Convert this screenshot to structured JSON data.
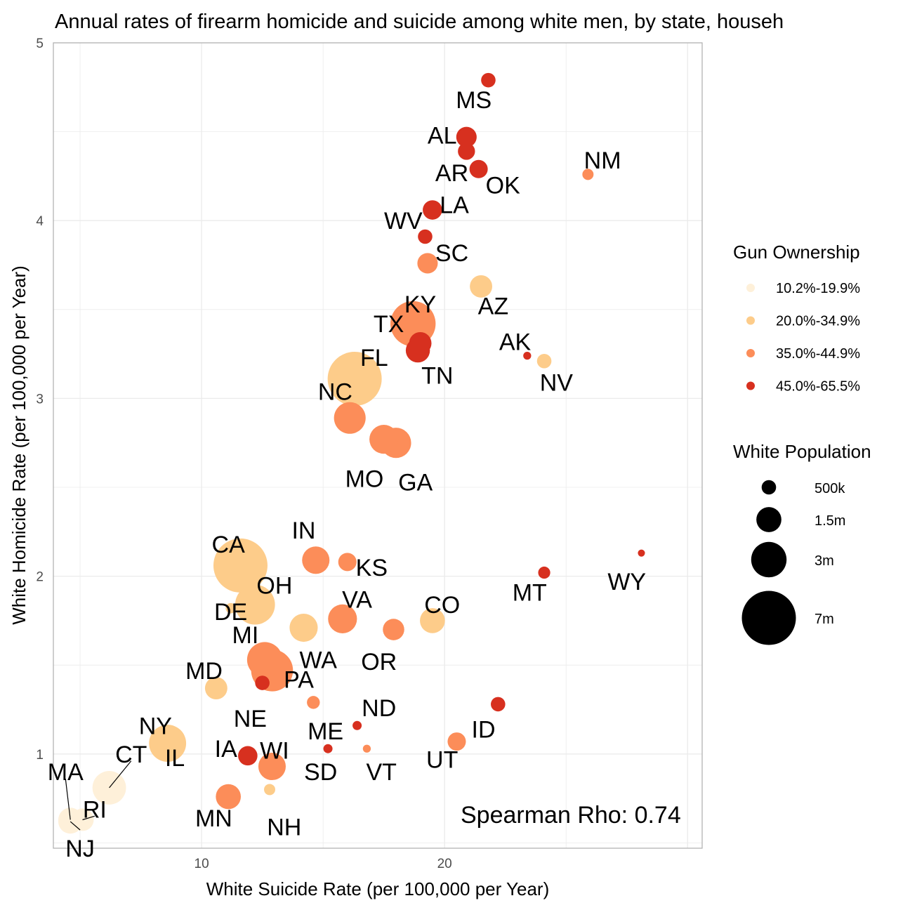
{
  "chart_data": {
    "type": "scatter",
    "title": "Annual rates of firearm homicide and suicide among white men, by state, househ",
    "xlabel": "White Suicide Rate (per 100,000 per Year)",
    "ylabel": "White Homicide Rate (per 100,000 per Year)",
    "xlim": [
      3.9,
      30.6
    ],
    "ylim": [
      0.47,
      5.0
    ],
    "xticks": [
      10,
      20
    ],
    "yticks": [
      1,
      2,
      3,
      4,
      5
    ],
    "grid": true,
    "annotation": "Spearman Rho:  0.74",
    "colors": {
      "10.2%-19.9%": "#fef0d9",
      "20.0%-34.9%": "#fdcc8a",
      "35.0%-44.9%": "#fc8d59",
      "45.0%-65.5%": "#d7301f"
    },
    "legend": {
      "placement": "right",
      "color_title": "Gun Ownership",
      "color_entries": [
        "10.2%-19.9%",
        "20.0%-34.9%",
        "35.0%-44.9%",
        "45.0%-65.5%"
      ],
      "size_title": "White Population",
      "size_entries": [
        {
          "label": "500k",
          "pop": 500000
        },
        {
          "label": "1.5m",
          "pop": 1500000
        },
        {
          "label": "3m",
          "pop": 3000000
        },
        {
          "label": "7m",
          "pop": 7000000
        }
      ]
    },
    "points": [
      {
        "state": "MS",
        "x": 21.8,
        "y": 4.79,
        "group": "45.0%-65.5%",
        "pop": 500000,
        "label_dx": -0.6,
        "label_dy": -0.11
      },
      {
        "state": "AL",
        "x": 20.9,
        "y": 4.47,
        "group": "45.0%-65.5%",
        "pop": 1000000,
        "label_dx": -1.0,
        "label_dy": 0.01
      },
      {
        "state": "AR",
        "x": 20.9,
        "y": 4.39,
        "group": "45.0%-65.5%",
        "pop": 700000,
        "label_dx": -0.6,
        "label_dy": -0.12
      },
      {
        "state": "OK",
        "x": 21.4,
        "y": 4.29,
        "group": "45.0%-65.5%",
        "pop": 800000,
        "label_dx": 1.0,
        "label_dy": -0.09
      },
      {
        "state": "NM",
        "x": 25.9,
        "y": 4.26,
        "group": "35.0%-44.9%",
        "pop": 300000,
        "label_dx": 0.6,
        "label_dy": 0.08
      },
      {
        "state": "LA",
        "x": 19.5,
        "y": 4.06,
        "group": "45.0%-65.5%",
        "pop": 900000,
        "label_dx": 0.9,
        "label_dy": 0.03
      },
      {
        "state": "WV",
        "x": 19.2,
        "y": 3.91,
        "group": "45.0%-65.5%",
        "pop": 500000,
        "label_dx": -0.9,
        "label_dy": 0.09
      },
      {
        "state": "SC",
        "x": 19.3,
        "y": 3.76,
        "group": "35.0%-44.9%",
        "pop": 1000000,
        "label_dx": 1.0,
        "label_dy": 0.06
      },
      {
        "state": "AZ",
        "x": 21.5,
        "y": 3.63,
        "group": "20.0%-34.9%",
        "pop": 1200000,
        "label_dx": 0.5,
        "label_dy": -0.11
      },
      {
        "state": "KY",
        "x": 19.0,
        "y": 3.31,
        "group": "45.0%-65.5%",
        "pop": 1200000,
        "label_dx": 0.0,
        "label_dy": 0.22
      },
      {
        "state": "TX",
        "x": 18.7,
        "y": 3.42,
        "group": "35.0%-44.9%",
        "pop": 4900000,
        "label_dx": -1.0,
        "label_dy": 0.0
      },
      {
        "state": "TN",
        "x": 18.9,
        "y": 3.27,
        "group": "45.0%-65.5%",
        "pop": 1400000,
        "label_dx": 0.8,
        "label_dy": -0.14
      },
      {
        "state": "AK",
        "x": 23.4,
        "y": 3.24,
        "group": "45.0%-65.5%",
        "pop": 150000,
        "label_dx": -0.5,
        "label_dy": 0.08
      },
      {
        "state": "NV",
        "x": 24.1,
        "y": 3.21,
        "group": "20.0%-34.9%",
        "pop": 500000,
        "label_dx": 0.5,
        "label_dy": -0.12
      },
      {
        "state": "FL",
        "x": 16.3,
        "y": 3.11,
        "group": "20.0%-34.9%",
        "pop": 7000000,
        "label_dx": 0.8,
        "label_dy": 0.12
      },
      {
        "state": "NC",
        "x": 16.1,
        "y": 2.89,
        "group": "35.0%-44.9%",
        "pop": 2400000,
        "label_dx": -0.6,
        "label_dy": 0.15
      },
      {
        "state": "MO",
        "x": 17.5,
        "y": 2.77,
        "group": "35.0%-44.9%",
        "pop": 2000000,
        "label_dx": -0.8,
        "label_dy": -0.22
      },
      {
        "state": "GA",
        "x": 18.0,
        "y": 2.75,
        "group": "35.0%-44.9%",
        "pop": 2200000,
        "label_dx": 0.8,
        "label_dy": -0.22
      },
      {
        "state": "CA",
        "x": 11.6,
        "y": 2.06,
        "group": "20.0%-34.9%",
        "pop": 7000000,
        "label_dx": -0.5,
        "label_dy": 0.12
      },
      {
        "state": "IN",
        "x": 14.7,
        "y": 2.09,
        "group": "35.0%-44.9%",
        "pop": 1800000,
        "label_dx": -0.5,
        "label_dy": 0.17
      },
      {
        "state": "KS",
        "x": 16.0,
        "y": 2.08,
        "group": "35.0%-44.9%",
        "pop": 800000,
        "label_dx": 1.0,
        "label_dy": -0.03
      },
      {
        "state": "WY",
        "x": 28.1,
        "y": 2.13,
        "group": "45.0%-65.5%",
        "pop": 120000,
        "label_dx": -0.6,
        "label_dy": -0.16
      },
      {
        "state": "MT",
        "x": 24.1,
        "y": 2.02,
        "group": "45.0%-65.5%",
        "pop": 350000,
        "label_dx": -0.6,
        "label_dy": -0.11
      },
      {
        "state": "OH",
        "x": 12.2,
        "y": 1.84,
        "group": "20.0%-34.9%",
        "pop": 3800000,
        "label_dx": 0.8,
        "label_dy": 0.11
      },
      {
        "state": "DE",
        "x": 11.2,
        "y": 1.82,
        "group": "20.0%-34.9%",
        "pop": 250000,
        "label_dx": 0.0,
        "label_dy": -0.02
      },
      {
        "state": "VA",
        "x": 15.8,
        "y": 1.76,
        "group": "35.0%-44.9%",
        "pop": 2000000,
        "label_dx": 0.6,
        "label_dy": 0.11
      },
      {
        "state": "CO",
        "x": 19.5,
        "y": 1.75,
        "group": "20.0%-34.9%",
        "pop": 1500000,
        "label_dx": 0.4,
        "label_dy": 0.09
      },
      {
        "state": "WA",
        "x": 14.2,
        "y": 1.71,
        "group": "20.0%-34.9%",
        "pop": 1900000,
        "label_dx": 0.6,
        "label_dy": -0.18
      },
      {
        "state": "OR",
        "x": 17.9,
        "y": 1.7,
        "group": "35.0%-44.9%",
        "pop": 1100000,
        "label_dx": -0.6,
        "label_dy": -0.18
      },
      {
        "state": "MI",
        "x": 12.6,
        "y": 1.53,
        "group": "35.0%-44.9%",
        "pop": 3000000,
        "label_dx": -0.8,
        "label_dy": 0.14
      },
      {
        "state": "PA",
        "x": 12.9,
        "y": 1.47,
        "group": "35.0%-44.9%",
        "pop": 4200000,
        "label_dx": 1.1,
        "label_dy": -0.05
      },
      {
        "state": "MD",
        "x": 10.6,
        "y": 1.37,
        "group": "20.0%-34.9%",
        "pop": 1200000,
        "label_dx": -0.5,
        "label_dy": 0.1
      },
      {
        "state": "NE",
        "x": 12.5,
        "y": 1.4,
        "group": "45.0%-65.5%",
        "pop": 500000,
        "label_dx": -0.5,
        "label_dy": -0.2
      },
      {
        "state": "ME",
        "x": 14.6,
        "y": 1.29,
        "group": "35.0%-44.9%",
        "pop": 400000,
        "label_dx": 0.5,
        "label_dy": -0.16
      },
      {
        "state": "ND",
        "x": 16.4,
        "y": 1.16,
        "group": "45.0%-65.5%",
        "pop": 200000,
        "label_dx": 0.9,
        "label_dy": 0.1
      },
      {
        "state": "ID",
        "x": 22.2,
        "y": 1.28,
        "group": "45.0%-65.5%",
        "pop": 500000,
        "label_dx": -0.6,
        "label_dy": -0.14
      },
      {
        "state": "NY",
        "x": 8.6,
        "y": 1.06,
        "group": "20.0%-34.9%",
        "pop": 3300000,
        "label_dx": -0.5,
        "label_dy": 0.1
      },
      {
        "state": "IL",
        "x": 8.6,
        "y": 1.04,
        "group": "20.0%-34.9%",
        "pop": 1600000,
        "label_dx": 0.3,
        "label_dy": -0.06
      },
      {
        "state": "IA",
        "x": 11.9,
        "y": 0.99,
        "group": "45.0%-65.5%",
        "pop": 900000,
        "label_dx": -0.9,
        "label_dy": 0.04
      },
      {
        "state": "WI",
        "x": 12.9,
        "y": 0.93,
        "group": "35.0%-44.9%",
        "pop": 1800000,
        "label_dx": 0.1,
        "label_dy": 0.09
      },
      {
        "state": "SD",
        "x": 15.2,
        "y": 1.03,
        "group": "45.0%-65.5%",
        "pop": 200000,
        "label_dx": -0.3,
        "label_dy": -0.13
      },
      {
        "state": "VT",
        "x": 16.8,
        "y": 1.03,
        "group": "35.0%-44.9%",
        "pop": 150000,
        "label_dx": 0.6,
        "label_dy": -0.13
      },
      {
        "state": "UT",
        "x": 20.5,
        "y": 1.07,
        "group": "35.0%-44.9%",
        "pop": 800000,
        "label_dx": -0.6,
        "label_dy": -0.1
      },
      {
        "state": "MN",
        "x": 11.1,
        "y": 0.76,
        "group": "35.0%-44.9%",
        "pop": 1500000,
        "label_dx": -0.6,
        "label_dy": -0.12
      },
      {
        "state": "NH",
        "x": 12.8,
        "y": 0.8,
        "group": "20.0%-34.9%",
        "pop": 300000,
        "label_dx": 0.6,
        "label_dy": -0.21
      },
      {
        "state": "CT",
        "x": 6.2,
        "y": 0.81,
        "group": "10.2%-19.9%",
        "pop": 2700000,
        "label_dx": 0.9,
        "label_dy": 0.19,
        "leader": true
      },
      {
        "state": "MA",
        "x": 4.6,
        "y": 0.63,
        "group": "10.2%-19.9%",
        "pop": 1400000,
        "label_dx": -0.2,
        "label_dy": 0.27,
        "leader": true
      },
      {
        "state": "RI",
        "x": 5.1,
        "y": 0.63,
        "group": "10.2%-19.9%",
        "pop": 1200000,
        "label_dx": 0.5,
        "label_dy": 0.06,
        "leader": true
      },
      {
        "state": "NJ",
        "x": 4.6,
        "y": 0.62,
        "group": "10.2%-19.9%",
        "pop": 1400000,
        "label_dx": 0.4,
        "label_dy": -0.15,
        "leader": true
      }
    ]
  }
}
